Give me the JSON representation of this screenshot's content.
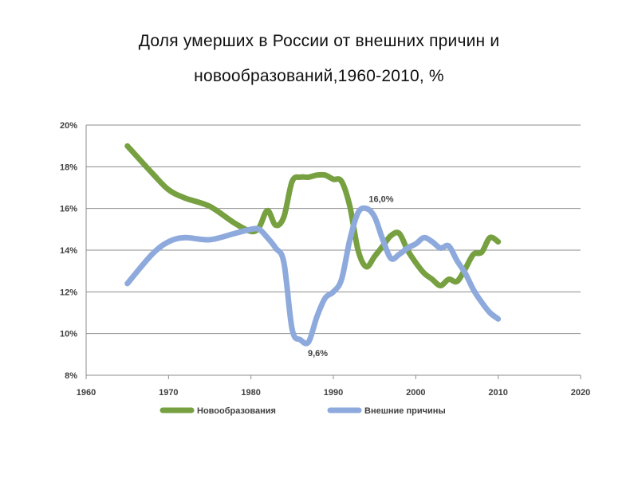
{
  "chart_data": {
    "type": "line",
    "title_line1": "Доля умерших в России от внешних причин и",
    "title_line2": "новообразований,1960-2010, %",
    "xlabel": "",
    "ylabel": "",
    "xlim": [
      1960,
      2020
    ],
    "ylim": [
      8,
      20
    ],
    "x_ticks": [
      1960,
      1970,
      1980,
      1990,
      2000,
      2010,
      2020
    ],
    "x_tick_labels": [
      "1960",
      "1970",
      "1980",
      "1990",
      "2000",
      "2010",
      "2020"
    ],
    "y_ticks": [
      8,
      10,
      12,
      14,
      16,
      18,
      20
    ],
    "y_tick_labels": [
      "8%",
      "10%",
      "12%",
      "14%",
      "16%",
      "18%",
      "20%"
    ],
    "grid": "horizontal",
    "legend_position": "bottom",
    "series": [
      {
        "name": "Новообразования",
        "color": "#77a041",
        "x": [
          1965,
          1968,
          1970,
          1972,
          1975,
          1978,
          1980,
          1981,
          1982,
          1983,
          1984,
          1985,
          1986,
          1987,
          1988,
          1989,
          1990,
          1991,
          1992,
          1993,
          1994,
          1995,
          1996,
          1997,
          1998,
          1999,
          2000,
          2001,
          2002,
          2003,
          2004,
          2005,
          2006,
          2007,
          2008,
          2009,
          2010
        ],
        "values": [
          19.0,
          17.7,
          16.9,
          16.5,
          16.1,
          15.3,
          14.9,
          15.1,
          15.9,
          15.2,
          15.6,
          17.3,
          17.5,
          17.5,
          17.6,
          17.6,
          17.4,
          17.3,
          16.1,
          14.0,
          13.2,
          13.7,
          14.2,
          14.7,
          14.8,
          14.0,
          13.4,
          12.9,
          12.6,
          12.3,
          12.6,
          12.5,
          13.1,
          13.8,
          13.9,
          14.6,
          14.4
        ]
      },
      {
        "name": "Внешние причины",
        "color": "#8eaadc",
        "x": [
          1965,
          1968,
          1970,
          1972,
          1975,
          1978,
          1980,
          1981,
          1982,
          1983,
          1984,
          1985,
          1986,
          1987,
          1988,
          1989,
          1990,
          1991,
          1992,
          1993,
          1994,
          1995,
          1996,
          1997,
          1998,
          1999,
          2000,
          2001,
          2002,
          2003,
          2004,
          2005,
          2006,
          2007,
          2008,
          2009,
          2010
        ],
        "values": [
          12.4,
          13.8,
          14.4,
          14.6,
          14.5,
          14.8,
          15.0,
          15.0,
          14.6,
          14.1,
          13.4,
          10.2,
          9.7,
          9.6,
          10.8,
          11.7,
          12.0,
          12.6,
          14.5,
          15.8,
          16.0,
          15.6,
          14.5,
          13.6,
          13.8,
          14.1,
          14.3,
          14.6,
          14.4,
          14.1,
          14.2,
          13.5,
          12.9,
          12.1,
          11.5,
          11.0,
          10.7
        ]
      }
    ],
    "annotations": [
      {
        "text": "16,0%",
        "x": 1994,
        "y": 16.0
      },
      {
        "text": "9,6%",
        "x": 1987,
        "y": 9.6
      }
    ]
  }
}
